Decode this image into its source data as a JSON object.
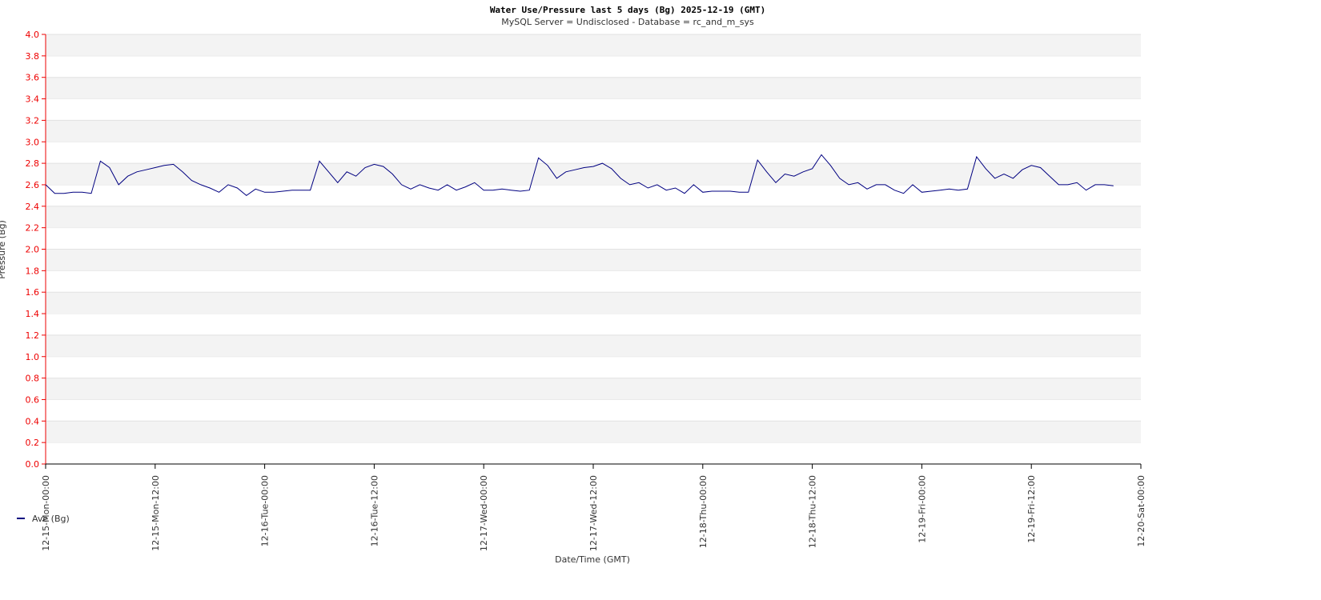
{
  "chart_data": {
    "type": "line",
    "title": "Water Use/Pressure last 5 days (Bg) 2025-12-19 (GMT)",
    "subtitle": "MySQL Server = Undisclosed - Database = rc_and_m_sys",
    "x_label": "Date/Time (GMT)",
    "y_label": "Pressure (Bg)",
    "legend": "bottom-left",
    "grid": true,
    "xlim": [
      "12-15-Mon-00:00",
      "12-20-Sat-00:00"
    ],
    "xticks": [
      "12-15-Mon-00:00",
      "12-15-Mon-12:00",
      "12-16-Tue-00:00",
      "12-16-Tue-12:00",
      "12-17-Wed-00:00",
      "12-17-Wed-12:00",
      "12-18-Thu-00:00",
      "12-18-Thu-12:00",
      "12-19-Fri-00:00",
      "12-19-Fri-12:00",
      "12-20-Sat-00:00"
    ],
    "ylim": [
      0,
      4
    ],
    "yticks": [
      {
        "value": 0,
        "label": "0.0"
      },
      0.2,
      0.4,
      0.6,
      0.8,
      {
        "value": 1,
        "label": "1.0"
      },
      1.2,
      1.4,
      1.6,
      1.8,
      {
        "value": 2,
        "label": "2.0"
      },
      2.2,
      2.4,
      2.6,
      2.8,
      {
        "value": 3,
        "label": "3.0"
      },
      3.2,
      3.4,
      3.6,
      3.8,
      {
        "value": 4,
        "label": "4.0"
      }
    ],
    "x": [
      "12-15 00:00",
      "12-15 01:00",
      "12-15 02:00",
      "12-15 03:00",
      "12-15 04:00",
      "12-15 05:00",
      "12-15 06:00",
      "12-15 07:00",
      "12-15 08:00",
      "12-15 09:00",
      "12-15 10:00",
      "12-15 11:00",
      "12-15 12:00",
      "12-15 13:00",
      "12-15 14:00",
      "12-15 15:00",
      "12-15 16:00",
      "12-15 17:00",
      "12-15 18:00",
      "12-15 19:00",
      "12-15 20:00",
      "12-15 21:00",
      "12-15 22:00",
      "12-15 23:00",
      "12-16 00:00",
      "12-16 01:00",
      "12-16 02:00",
      "12-16 03:00",
      "12-16 04:00",
      "12-16 05:00",
      "12-16 06:00",
      "12-16 07:00",
      "12-16 08:00",
      "12-16 09:00",
      "12-16 10:00",
      "12-16 11:00",
      "12-16 12:00",
      "12-16 13:00",
      "12-16 14:00",
      "12-16 15:00",
      "12-16 16:00",
      "12-16 17:00",
      "12-16 18:00",
      "12-16 19:00",
      "12-16 20:00",
      "12-16 21:00",
      "12-16 22:00",
      "12-16 23:00",
      "12-17 00:00",
      "12-17 01:00",
      "12-17 02:00",
      "12-17 03:00",
      "12-17 04:00",
      "12-17 05:00",
      "12-17 06:00",
      "12-17 07:00",
      "12-17 08:00",
      "12-17 09:00",
      "12-17 10:00",
      "12-17 11:00",
      "12-17 12:00",
      "12-17 13:00",
      "12-17 14:00",
      "12-17 15:00",
      "12-17 16:00",
      "12-17 17:00",
      "12-17 18:00",
      "12-17 19:00",
      "12-17 20:00",
      "12-17 21:00",
      "12-17 22:00",
      "12-17 23:00",
      "12-18 00:00",
      "12-18 01:00",
      "12-18 02:00",
      "12-18 03:00",
      "12-18 04:00",
      "12-18 05:00",
      "12-18 06:00",
      "12-18 07:00",
      "12-18 08:00",
      "12-18 09:00",
      "12-18 10:00",
      "12-18 11:00",
      "12-18 12:00",
      "12-18 13:00",
      "12-18 14:00",
      "12-18 15:00",
      "12-18 16:00",
      "12-18 17:00",
      "12-18 18:00",
      "12-18 19:00",
      "12-18 20:00",
      "12-18 21:00",
      "12-18 22:00",
      "12-18 23:00",
      "12-19 00:00",
      "12-19 01:00",
      "12-19 02:00",
      "12-19 03:00",
      "12-19 04:00",
      "12-19 05:00",
      "12-19 06:00",
      "12-19 07:00",
      "12-19 08:00",
      "12-19 09:00",
      "12-19 10:00",
      "12-19 11:00",
      "12-19 12:00",
      "12-19 13:00",
      "12-19 14:00",
      "12-19 15:00",
      "12-19 16:00",
      "12-19 17:00",
      "12-19 18:00",
      "12-19 19:00",
      "12-19 20:00",
      "12-19 21:00"
    ],
    "series": [
      {
        "name": "Ave (Bg)",
        "color": "#000080",
        "values": [
          2.6,
          2.52,
          2.52,
          2.53,
          2.53,
          2.52,
          2.82,
          2.76,
          2.6,
          2.68,
          2.72,
          2.74,
          2.76,
          2.78,
          2.79,
          2.72,
          2.64,
          2.6,
          2.57,
          2.53,
          2.6,
          2.57,
          2.5,
          2.56,
          2.53,
          2.53,
          2.54,
          2.55,
          2.55,
          2.55,
          2.82,
          2.72,
          2.62,
          2.72,
          2.68,
          2.76,
          2.79,
          2.77,
          2.7,
          2.6,
          2.56,
          2.6,
          2.57,
          2.55,
          2.6,
          2.55,
          2.58,
          2.62,
          2.55,
          2.55,
          2.56,
          2.55,
          2.54,
          2.55,
          2.85,
          2.78,
          2.66,
          2.72,
          2.74,
          2.76,
          2.77,
          2.8,
          2.75,
          2.66,
          2.6,
          2.62,
          2.57,
          2.6,
          2.55,
          2.57,
          2.52,
          2.6,
          2.53,
          2.54,
          2.54,
          2.54,
          2.53,
          2.53,
          2.83,
          2.72,
          2.62,
          2.7,
          2.68,
          2.72,
          2.75,
          2.88,
          2.78,
          2.66,
          2.6,
          2.62,
          2.56,
          2.6,
          2.6,
          2.55,
          2.52,
          2.6,
          2.53,
          2.54,
          2.55,
          2.56,
          2.55,
          2.56,
          2.86,
          2.75,
          2.66,
          2.7,
          2.66,
          2.74,
          2.78,
          2.76,
          2.68,
          2.6,
          2.6,
          2.62,
          2.55,
          2.6,
          2.6,
          2.59
        ]
      }
    ]
  }
}
